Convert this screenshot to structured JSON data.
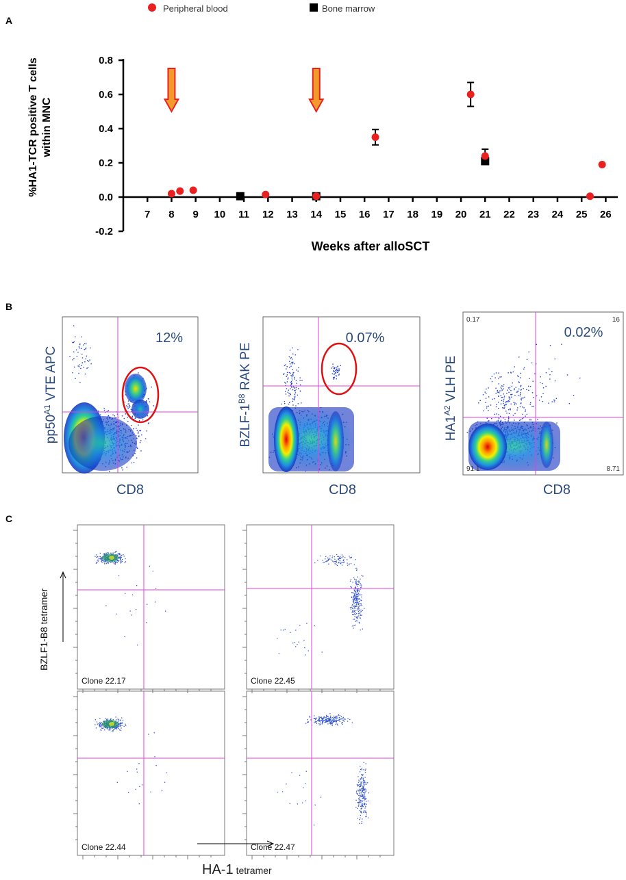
{
  "panels": {
    "a": "A",
    "b": "B",
    "c": "C"
  },
  "chart_data": {
    "type": "scatter",
    "xlabel": "Weeks after alloSCT",
    "ylabel_line1": "%HA1-TCR positive T cells",
    "ylabel_line2": "within MNC",
    "xlim": [
      6,
      26.5
    ],
    "ylim": [
      -0.2,
      0.8
    ],
    "x_ticks": [
      "7",
      "8",
      "9",
      "10",
      "11",
      "12",
      "13",
      "14",
      "15",
      "16",
      "17",
      "18",
      "19",
      "20",
      "21",
      "22",
      "23",
      "24",
      "25",
      "26"
    ],
    "y_ticks": [
      "0.8",
      "0.6",
      "0.4",
      "0.2",
      "0.0",
      "-0.2"
    ],
    "legend": [
      {
        "label": "Peripheral blood",
        "marker": "circle",
        "color": "#e8201f"
      },
      {
        "label": "Bone marrow",
        "marker": "square",
        "color": "#000000"
      }
    ],
    "series": [
      {
        "name": "Peripheral blood",
        "points": [
          {
            "x": 8,
            "y": 0.02
          },
          {
            "x": 8.35,
            "y": 0.035
          },
          {
            "x": 8.9,
            "y": 0.04
          },
          {
            "x": 11.9,
            "y": 0.015
          },
          {
            "x": 14,
            "y": 0.005
          },
          {
            "x": 16.45,
            "y": 0.35,
            "err": 0.045
          },
          {
            "x": 20.4,
            "y": 0.6,
            "err": 0.07
          },
          {
            "x": 21,
            "y": 0.24,
            "err": 0.04
          },
          {
            "x": 25.35,
            "y": 0.005
          },
          {
            "x": 25.85,
            "y": 0.19
          }
        ]
      },
      {
        "name": "Bone marrow",
        "points": [
          {
            "x": 10.85,
            "y": 0.005
          },
          {
            "x": 14,
            "y": 0.005
          },
          {
            "x": 21,
            "y": 0.21
          }
        ]
      }
    ],
    "arrows_at_weeks": [
      8,
      14
    ]
  },
  "flow_b": [
    {
      "ylabel": "pp50",
      "ysup": "A1",
      "ysuffix": " VTE APC",
      "xlabel": "CD8",
      "percent": "12%",
      "corners": {}
    },
    {
      "ylabel": "BZLF-1",
      "ysup": "B8",
      "ysuffix": "  RAK PE",
      "xlabel": "CD8",
      "percent": "0.07%",
      "corners": {}
    },
    {
      "ylabel": "HA1",
      "ysup": "A2",
      "ysuffix": "  VLH PE",
      "xlabel": "CD8",
      "percent": "0.02%",
      "corners": {
        "tl": "0.17",
        "tr": "16",
        "bl": "91.1",
        "br": "8.71"
      }
    }
  ],
  "flow_c": {
    "clones": [
      "Clone 22.17",
      "Clone 22.45",
      "Clone 22.44",
      "Clone 22.47"
    ],
    "ylabel": "BZLF1-B8  tetramer",
    "xlabel_main": "HA-1",
    "xlabel_sub": "tetramer"
  }
}
